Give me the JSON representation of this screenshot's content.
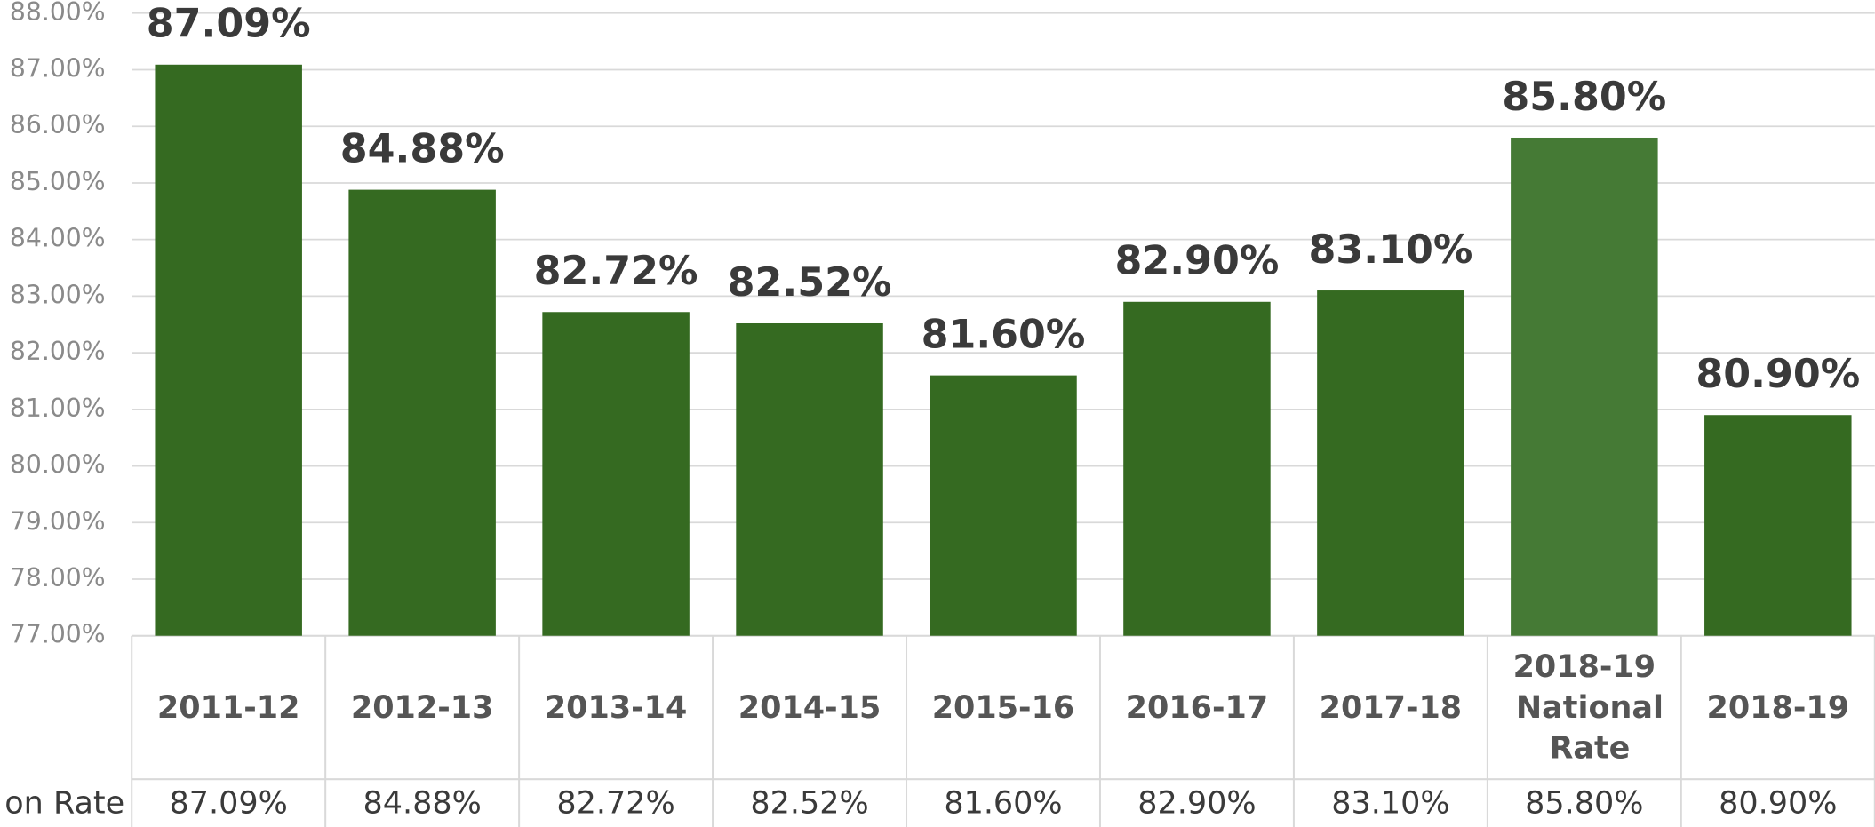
{
  "chart_data": {
    "type": "bar",
    "categories": [
      "2011-12",
      "2012-13",
      "2013-14",
      "2014-15",
      "2015-16",
      "2016-17",
      "2017-18",
      "2018-19 National Rate",
      "2018-19"
    ],
    "series": [
      {
        "name": "on Rate",
        "colors": [
          "#356a21",
          "#356a21",
          "#356a21",
          "#356a21",
          "#356a21",
          "#356a21",
          "#356a21",
          "#457a35",
          "#356a21"
        ],
        "values": [
          87.09,
          84.88,
          82.72,
          82.52,
          81.6,
          82.9,
          83.1,
          85.8,
          80.9
        ],
        "value_labels": [
          "87.09%",
          "84.88%",
          "82.72%",
          "82.52%",
          "81.60%",
          "82.90%",
          "83.10%",
          "85.80%",
          "80.90%"
        ]
      }
    ],
    "ylim": [
      77,
      88
    ],
    "yticks": [
      {
        "value": 77,
        "label": "77.00%"
      },
      {
        "value": 78,
        "label": "78.00%"
      },
      {
        "value": 79,
        "label": "79.00%"
      },
      {
        "value": 80,
        "label": "80.00%"
      },
      {
        "value": 81,
        "label": "81.00%"
      },
      {
        "value": 82,
        "label": "82.00%"
      },
      {
        "value": 83,
        "label": "83.00%"
      },
      {
        "value": 84,
        "label": "84.00%"
      },
      {
        "value": 85,
        "label": "85.00%"
      },
      {
        "value": 86,
        "label": "86.00%"
      },
      {
        "value": 87,
        "label": "87.00%"
      },
      {
        "value": 88,
        "label": "88.00%"
      }
    ],
    "grid": true,
    "data_table": true
  }
}
